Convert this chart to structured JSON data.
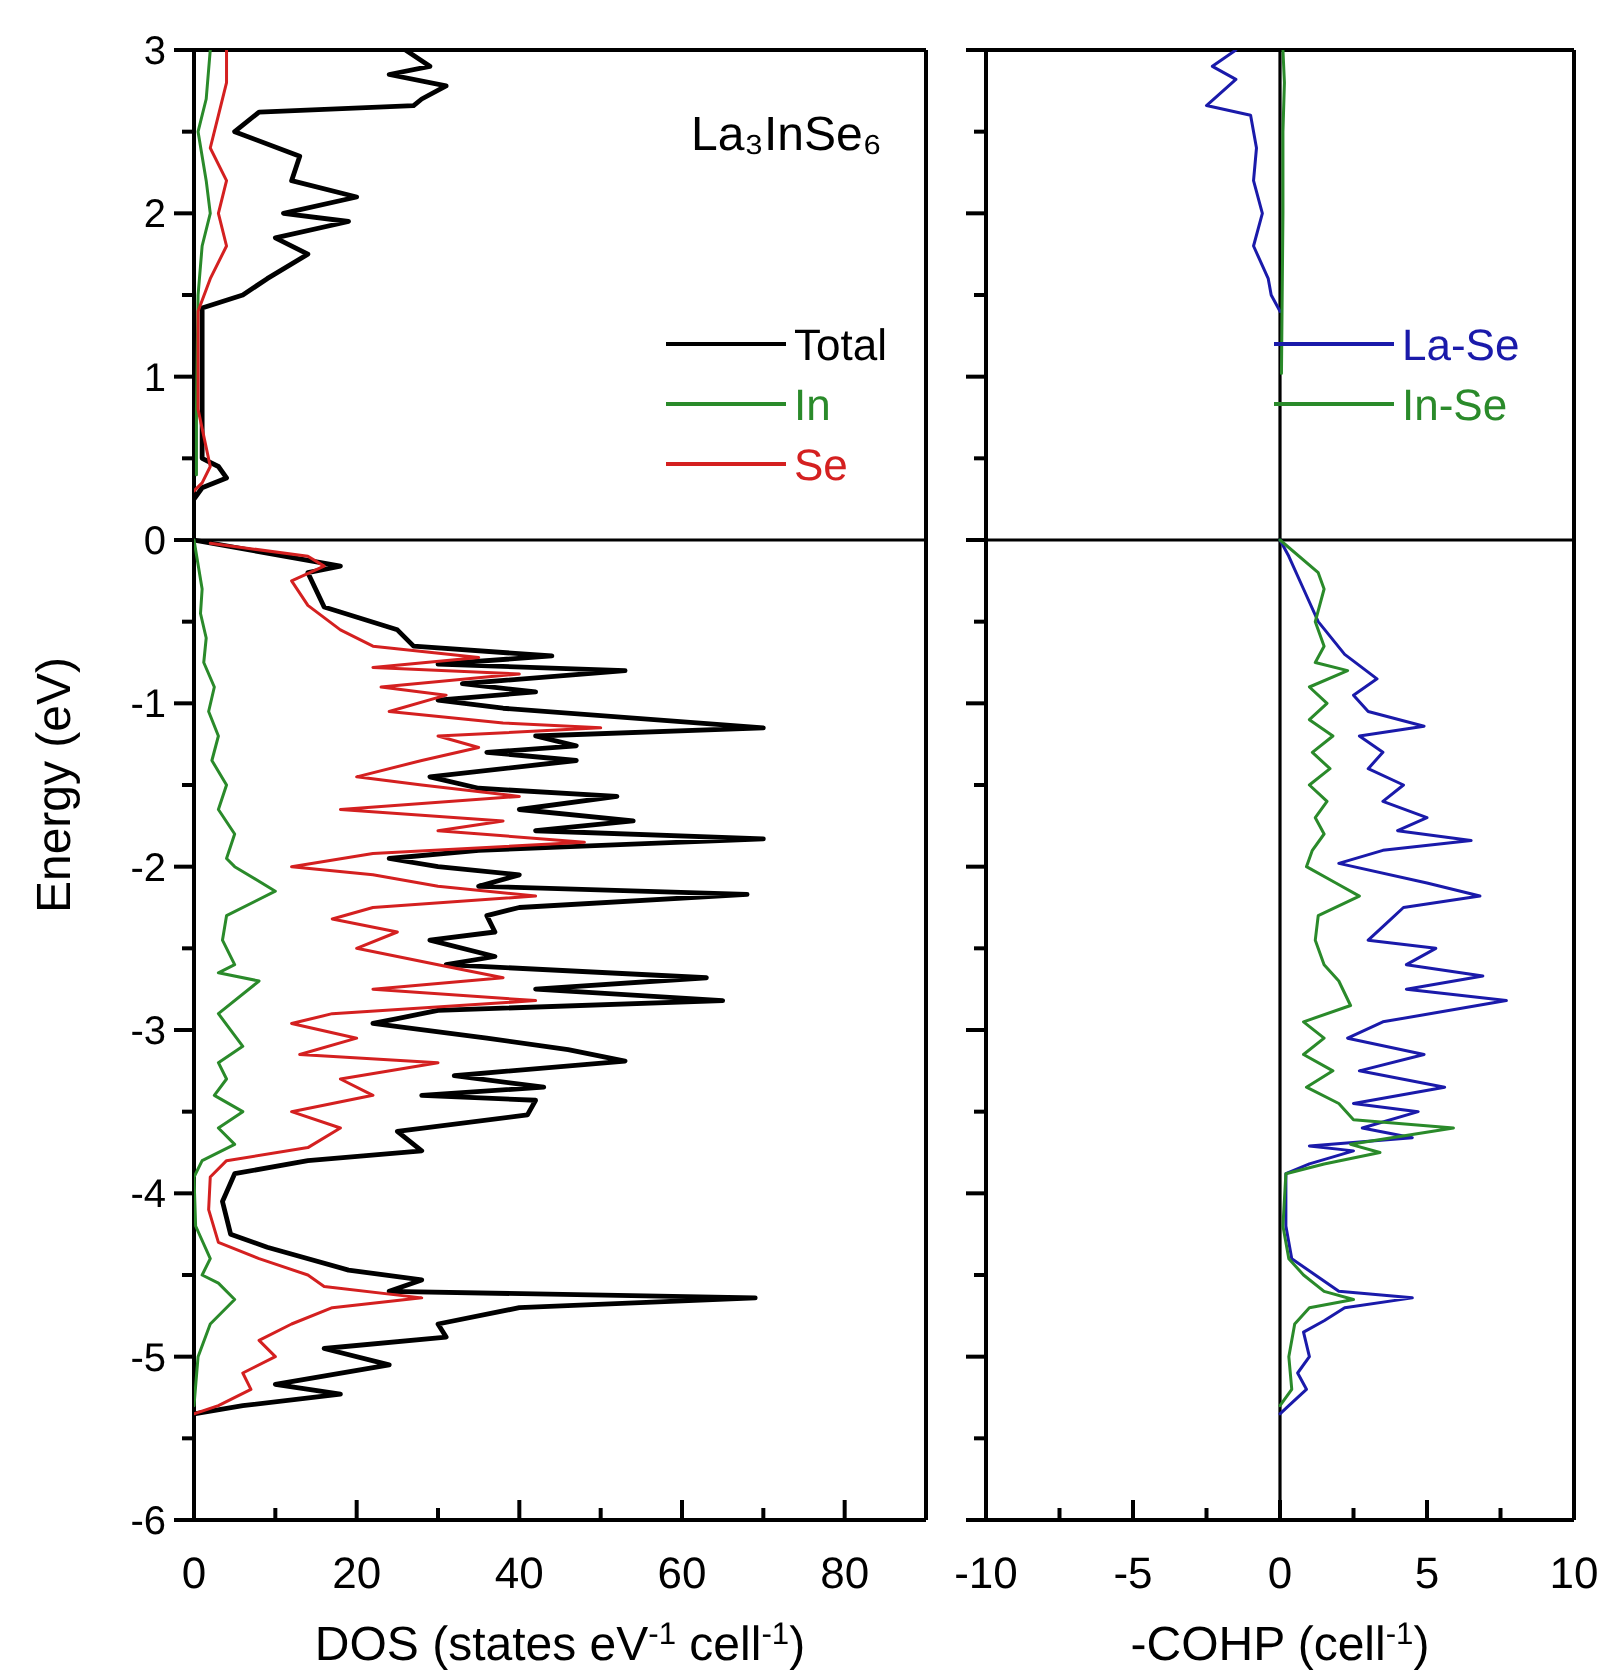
{
  "chart_data": [
    {
      "type": "line",
      "title": "La₃InSe₆",
      "xlabel": "DOS (states eV$^{-1}$ cell$^{-1}$)",
      "ylabel": "Energy (eV)",
      "xlim": [
        0,
        90
      ],
      "ylim": [
        -6,
        3
      ],
      "xticks": [
        0,
        {
          "value": 10,
          "label": null
        },
        20,
        {
          "value": 30,
          "label": null
        },
        40,
        {
          "value": 50,
          "label": null
        },
        60,
        {
          "value": 70,
          "label": null
        },
        80,
        {
          "value": 90,
          "label": null
        }
      ],
      "yticks": [
        -6,
        {
          "value": -5.5,
          "label": null
        },
        -5,
        {
          "value": -4.5,
          "label": null
        },
        -4,
        {
          "value": -3.5,
          "label": null
        },
        -3,
        {
          "value": -2.5,
          "label": null
        },
        -2,
        {
          "value": -1.5,
          "label": null
        },
        -1,
        {
          "value": -0.5,
          "label": null
        },
        0,
        {
          "value": 0.5,
          "label": null
        },
        1,
        {
          "value": 1.5,
          "label": null
        },
        2,
        {
          "value": 2.5,
          "label": null
        },
        3
      ],
      "legend": "top right",
      "ref_lines": [
        {
          "axis": "y",
          "value": 0
        }
      ],
      "series": [
        {
          "name": "Total",
          "color": "#000000",
          "x": [
            26,
            29,
            24,
            31,
            28,
            27,
            8,
            5,
            13,
            12,
            20,
            11,
            19,
            10,
            14,
            9,
            6,
            1,
            1,
            1,
            3,
            4,
            1,
            0,
            null,
            0,
            18,
            14,
            16,
            25,
            27,
            44,
            30,
            53,
            33,
            42,
            30,
            38,
            70,
            42,
            47,
            36,
            47,
            29,
            35,
            52,
            40,
            54,
            42,
            70,
            35,
            24,
            30,
            40,
            35,
            68,
            40,
            36,
            37,
            29,
            37,
            31,
            63,
            42,
            65,
            30,
            25,
            22,
            36,
            46,
            53,
            32,
            43,
            28,
            42,
            41,
            25,
            28,
            14,
            5,
            3.5,
            4.5,
            9,
            19,
            28,
            24,
            69,
            40,
            30,
            31,
            16,
            24,
            10,
            18,
            6,
            0
          ],
          "values": [
            3,
            2.9,
            2.85,
            2.78,
            2.7,
            2.66,
            2.62,
            2.5,
            2.35,
            2.2,
            2.1,
            2,
            1.95,
            1.85,
            1.75,
            1.6,
            1.5,
            1.42,
            1.3,
            0.5,
            0.45,
            0.38,
            0.32,
            0.25,
            null,
            0,
            -0.16,
            -0.2,
            -0.41,
            -0.55,
            -0.65,
            -0.71,
            -0.76,
            -0.8,
            -0.88,
            -0.93,
            -0.98,
            -1.03,
            -1.15,
            -1.2,
            -1.26,
            -1.3,
            -1.35,
            -1.45,
            -1.52,
            -1.57,
            -1.65,
            -1.72,
            -1.78,
            -1.83,
            -1.9,
            -1.95,
            -2,
            -2.05,
            -2.12,
            -2.17,
            -2.25,
            -2.3,
            -2.4,
            -2.45,
            -2.55,
            -2.6,
            -2.68,
            -2.75,
            -2.82,
            -2.88,
            -2.93,
            -2.96,
            -3.05,
            -3.12,
            -3.19,
            -3.28,
            -3.35,
            -3.4,
            -3.43,
            -3.52,
            -3.62,
            -3.74,
            -3.8,
            -3.88,
            -4.05,
            -4.25,
            -4.33,
            -4.47,
            -4.53,
            -4.6,
            -4.64,
            -4.7,
            -4.8,
            -4.88,
            -4.95,
            -5.05,
            -5.17,
            -5.23,
            -5.3,
            -5.35
          ]
        },
        {
          "name": "In",
          "color": "#2a8a2a",
          "x": [
            2,
            1.5,
            0.5,
            1.5,
            2,
            1,
            0.5,
            0.3,
            0.3,
            null,
            0,
            1,
            0.8,
            1.5,
            1.2,
            2.5,
            1.8,
            3,
            2.2,
            4,
            3,
            5,
            4,
            5,
            10,
            4,
            3.5,
            5,
            3,
            8,
            3,
            6,
            3,
            4,
            2.5,
            6,
            3,
            5,
            1,
            0,
            0.2,
            2,
            1,
            3,
            5,
            2,
            0.5,
            0
          ],
          "values": [
            3,
            2.7,
            2.5,
            2.2,
            2,
            1.8,
            1.5,
            0.8,
            0.4,
            null,
            0,
            -0.3,
            -0.45,
            -0.6,
            -0.75,
            -0.9,
            -1.05,
            -1.2,
            -1.35,
            -1.5,
            -1.65,
            -1.8,
            -1.95,
            -2,
            -2.15,
            -2.3,
            -2.45,
            -2.6,
            -2.65,
            -2.7,
            -2.9,
            -3.1,
            -3.2,
            -3.3,
            -3.4,
            -3.5,
            -3.6,
            -3.7,
            -3.8,
            -3.9,
            -4.2,
            -4.4,
            -4.5,
            -4.55,
            -4.65,
            -4.8,
            -5,
            -5.3
          ]
        },
        {
          "name": "Se",
          "color": "#d42020",
          "x": [
            4,
            4,
            3,
            2,
            4,
            3,
            4,
            2,
            0.5,
            0.5,
            2,
            1,
            0,
            null,
            2,
            14,
            16,
            12,
            14,
            18,
            22,
            35,
            22,
            40,
            23,
            31,
            24,
            38,
            50,
            30,
            35,
            28,
            20,
            28,
            40,
            18,
            38,
            30,
            48,
            22,
            12,
            22,
            30,
            42,
            22,
            17,
            25,
            20,
            30,
            38,
            22,
            42,
            17,
            12,
            20,
            13,
            30,
            18,
            22,
            12,
            18,
            14,
            4,
            2,
            1.8,
            3,
            8,
            14,
            16,
            28,
            17,
            12,
            8,
            10,
            6,
            7,
            3,
            0
          ],
          "values": [
            3,
            2.8,
            2.6,
            2.4,
            2.2,
            2,
            1.8,
            1.6,
            1.4,
            0.8,
            0.45,
            0.35,
            0.3,
            null,
            -0.02,
            -0.1,
            -0.16,
            -0.25,
            -0.4,
            -0.55,
            -0.65,
            -0.72,
            -0.78,
            -0.82,
            -0.9,
            -0.95,
            -1.05,
            -1.12,
            -1.15,
            -1.2,
            -1.27,
            -1.35,
            -1.45,
            -1.5,
            -1.57,
            -1.65,
            -1.72,
            -1.78,
            -1.85,
            -1.92,
            -2,
            -2.05,
            -2.12,
            -2.18,
            -2.25,
            -2.32,
            -2.4,
            -2.5,
            -2.6,
            -2.68,
            -2.75,
            -2.82,
            -2.9,
            -2.96,
            -3.05,
            -3.15,
            -3.2,
            -3.3,
            -3.4,
            -3.5,
            -3.6,
            -3.72,
            -3.8,
            -3.9,
            -4.1,
            -4.3,
            -4.4,
            -4.5,
            -4.57,
            -4.64,
            -4.7,
            -4.8,
            -4.9,
            -5,
            -5.1,
            -5.2,
            -5.3,
            -5.35
          ]
        }
      ]
    },
    {
      "type": "line",
      "xlabel": "-COHP (cell$^{-1}$)",
      "xlim": [
        -10,
        10
      ],
      "ylim": [
        -6,
        3
      ],
      "tick_labels": "x",
      "xticks": [
        -10,
        {
          "value": -7.5,
          "label": null
        },
        -5,
        {
          "value": -2.5,
          "label": null
        },
        0,
        {
          "value": 2.5,
          "label": null
        },
        5,
        {
          "value": 7.5,
          "label": null
        },
        10
      ],
      "yticks": [
        -6,
        {
          "value": -5.5,
          "label": null
        },
        -5,
        {
          "value": -4.5,
          "label": null
        },
        -4,
        {
          "value": -3.5,
          "label": null
        },
        -3,
        {
          "value": -2.5,
          "label": null
        },
        -2,
        {
          "value": -1.5,
          "label": null
        },
        -1,
        {
          "value": -0.5,
          "label": null
        },
        0,
        {
          "value": 0.5,
          "label": null
        },
        1,
        {
          "value": 1.5,
          "label": null
        },
        2,
        {
          "value": 2.5,
          "label": null
        },
        3
      ],
      "legend": "top right",
      "ref_lines": [
        {
          "axis": "y",
          "value": 0
        },
        {
          "axis": "x",
          "value": 0
        }
      ],
      "series": [
        {
          "name": "La-Se",
          "color": "#1a1aaa",
          "x": [
            -1.5,
            -2.3,
            -1.5,
            -2.5,
            -1,
            -0.8,
            -0.9,
            -0.6,
            -0.9,
            -0.4,
            -0.3,
            0,
            null,
            0,
            0.3,
            0.8,
            1.3,
            2.2,
            3.3,
            2.5,
            3,
            4.9,
            2.7,
            3.5,
            3,
            4.2,
            3.5,
            5,
            4,
            6.5,
            3.5,
            2,
            5,
            6.8,
            4.2,
            3.6,
            3,
            5.3,
            4.3,
            6.9,
            4.3,
            7.7,
            3.5,
            2.3,
            4.9,
            2.7,
            5.6,
            2.5,
            4.7,
            2.8,
            4.5,
            1,
            2.5,
            1,
            0.2,
            0.2,
            0.4,
            1.2,
            2,
            4.5,
            2.2,
            1.5,
            0.8,
            1,
            0.6,
            0.9,
            0.3,
            0
          ],
          "values": [
            3,
            2.9,
            2.82,
            2.66,
            2.6,
            2.4,
            2.2,
            2,
            1.8,
            1.6,
            1.5,
            1.4,
            null,
            0,
            -0.1,
            -0.3,
            -0.5,
            -0.7,
            -0.85,
            -0.95,
            -1.05,
            -1.14,
            -1.2,
            -1.3,
            -1.4,
            -1.5,
            -1.6,
            -1.7,
            -1.78,
            -1.84,
            -1.9,
            -1.98,
            -2.1,
            -2.18,
            -2.25,
            -2.35,
            -2.45,
            -2.5,
            -2.6,
            -2.67,
            -2.75,
            -2.82,
            -2.95,
            -3.05,
            -3.15,
            -3.25,
            -3.35,
            -3.45,
            -3.5,
            -3.6,
            -3.66,
            -3.71,
            -3.74,
            -3.82,
            -3.88,
            -4.2,
            -4.4,
            -4.5,
            -4.6,
            -4.64,
            -4.7,
            -4.78,
            -4.85,
            -5,
            -5.1,
            -5.2,
            -5.3,
            -5.35
          ]
        },
        {
          "name": "In-Se",
          "color": "#2a8a2a",
          "x": [
            0.1,
            0.15,
            0.1,
            0.1,
            0.05,
            null,
            0,
            1.3,
            1.5,
            1.2,
            1.5,
            1.2,
            2.3,
            1,
            1.6,
            1,
            1.8,
            1.1,
            1.7,
            1,
            1.6,
            1.2,
            1.5,
            1.1,
            0.9,
            1.9,
            2.7,
            1.3,
            1.2,
            1.5,
            2,
            2.4,
            0.8,
            1.5,
            0.8,
            1.8,
            0.9,
            2,
            2.5,
            5.9,
            2.4,
            3.4,
            1.5,
            0.2,
            0.1,
            0.3,
            0.8,
            1.5,
            2.5,
            1,
            0.5,
            0.3,
            0.4,
            0
          ],
          "values": [
            3,
            2.8,
            2.5,
            2,
            1.02,
            null,
            0,
            -0.2,
            -0.3,
            -0.5,
            -0.65,
            -0.75,
            -0.8,
            -0.9,
            -1,
            -1.1,
            -1.2,
            -1.3,
            -1.4,
            -1.5,
            -1.6,
            -1.7,
            -1.8,
            -1.9,
            -2,
            -2.1,
            -2.18,
            -2.3,
            -2.45,
            -2.6,
            -2.7,
            -2.85,
            -2.95,
            -3.05,
            -3.15,
            -3.25,
            -3.35,
            -3.45,
            -3.55,
            -3.6,
            -3.7,
            -3.75,
            -3.82,
            -3.88,
            -4.2,
            -4.4,
            -4.5,
            -4.6,
            -4.65,
            -4.7,
            -4.8,
            -5,
            -5.2,
            -5.3
          ]
        }
      ]
    }
  ]
}
